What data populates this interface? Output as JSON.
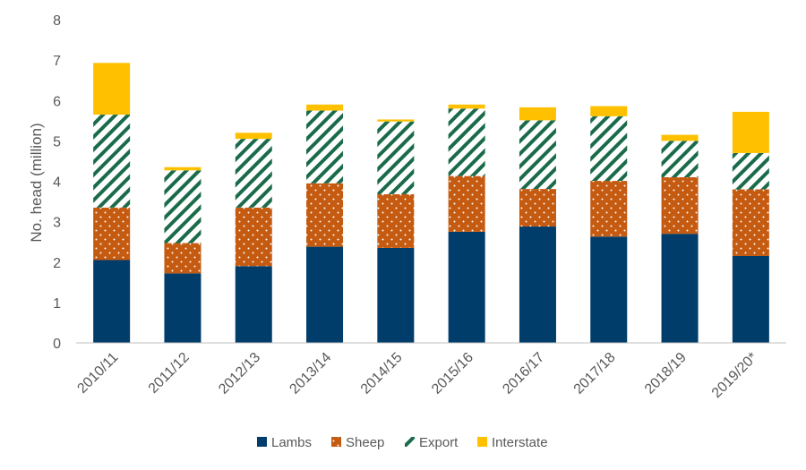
{
  "chart_data": {
    "type": "bar",
    "stacked": true,
    "title": "",
    "xlabel": "",
    "ylabel": "No. head (million)",
    "ylim": [
      0,
      8
    ],
    "yticks": [
      0,
      1,
      2,
      3,
      4,
      5,
      6,
      7,
      8
    ],
    "categories": [
      "2010/11",
      "2011/12",
      "2012/13",
      "2013/14",
      "2014/15",
      "2015/16",
      "2016/17",
      "2017/18",
      "2018/19",
      "2019/20*"
    ],
    "series": [
      {
        "name": "Lambs",
        "color": "#003d6b",
        "pattern": "solid",
        "values": [
          2.05,
          1.72,
          1.9,
          2.38,
          2.35,
          2.75,
          2.88,
          2.63,
          2.7,
          2.15
        ]
      },
      {
        "name": "Sheep",
        "color": "#c55a11",
        "pattern": "dotted",
        "values": [
          1.3,
          0.75,
          1.45,
          1.57,
          1.33,
          1.38,
          0.93,
          1.38,
          1.4,
          1.65
        ]
      },
      {
        "name": "Export",
        "color": "#1a6b4a",
        "pattern": "diagonal-stripes",
        "values": [
          2.3,
          1.8,
          1.7,
          1.8,
          1.8,
          1.67,
          1.7,
          1.6,
          0.9,
          0.9
        ]
      },
      {
        "name": "Interstate",
        "color": "#ffc000",
        "pattern": "solid",
        "values": [
          1.28,
          0.08,
          0.15,
          0.15,
          0.05,
          0.1,
          0.32,
          0.25,
          0.15,
          1.02
        ]
      }
    ],
    "grid": false,
    "legend_position": "bottom"
  }
}
